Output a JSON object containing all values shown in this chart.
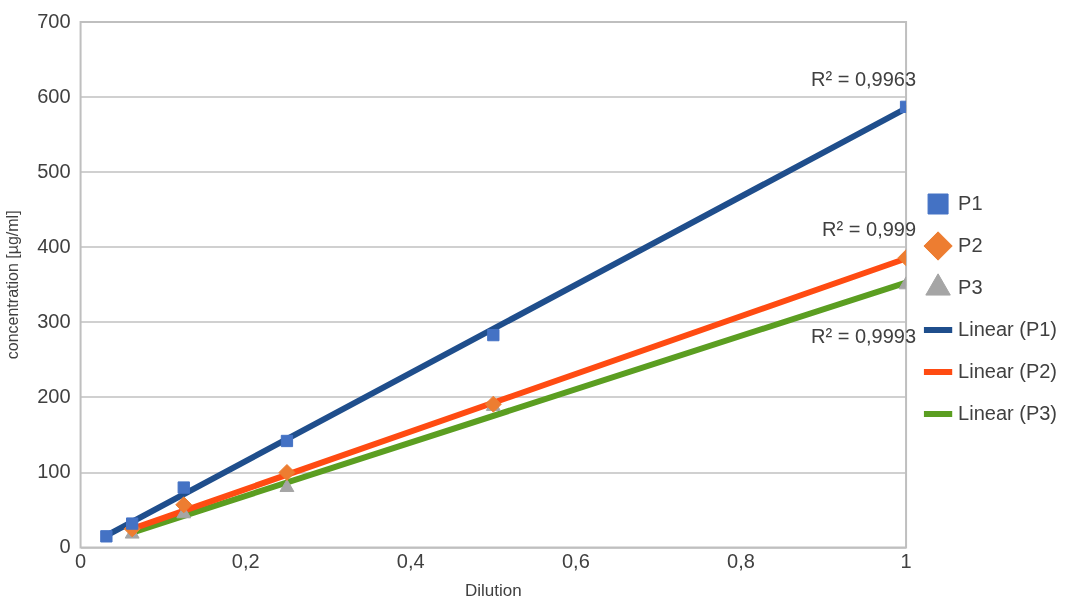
{
  "chart_data": {
    "type": "scatter",
    "xlabel": "Dilution",
    "ylabel": "concentration [µg/ml]",
    "xlim": [
      0,
      1
    ],
    "xticks": [
      0,
      {
        "value": 0.2,
        "label": "0,2"
      },
      {
        "value": 0.4,
        "label": "0,4"
      },
      {
        "value": 0.6,
        "label": "0,6"
      },
      {
        "value": 0.8,
        "label": "0,8"
      },
      1
    ],
    "ylim": [
      0,
      700
    ],
    "yticks": [
      0,
      100,
      200,
      300,
      400,
      500,
      600,
      700
    ],
    "grid": "y",
    "legend": "right",
    "series": [
      {
        "name": "P1",
        "marker": "square",
        "color": "#4472c4",
        "x": [
          0.03125,
          0.0625,
          0.125,
          0.25,
          0.5,
          1
        ],
        "values": [
          15,
          32,
          80,
          142,
          283,
          587
        ]
      },
      {
        "name": "P2",
        "marker": "diamond",
        "color": "#ed7d31",
        "x": [
          0.0625,
          0.125,
          0.25,
          0.5,
          1
        ],
        "values": [
          25,
          57,
          100,
          191,
          386
        ]
      },
      {
        "name": "P3",
        "marker": "triangle",
        "color": "#a5a5a5",
        "x": [
          0.0625,
          0.125,
          0.25,
          0.5,
          1
        ],
        "values": [
          18,
          45,
          80,
          188,
          350
        ]
      },
      {
        "name": "Linear (P1)",
        "type": "line",
        "marker": "none",
        "color": "#1f4e8c",
        "x": [
          0.03125,
          1
        ],
        "values": [
          16,
          585
        ]
      },
      {
        "name": "Linear (P2)",
        "type": "line",
        "marker": "none",
        "color": "#ff4b12",
        "x": [
          0.0625,
          1
        ],
        "values": [
          25,
          385
        ]
      },
      {
        "name": "Linear (P3)",
        "type": "line",
        "marker": "none",
        "color": "#5b9e21",
        "x": [
          0.0625,
          1
        ],
        "values": [
          20,
          353
        ]
      }
    ],
    "annotations": [
      "R² = 0,9963",
      "R² = 0,999",
      "R² = 0,9993"
    ]
  }
}
